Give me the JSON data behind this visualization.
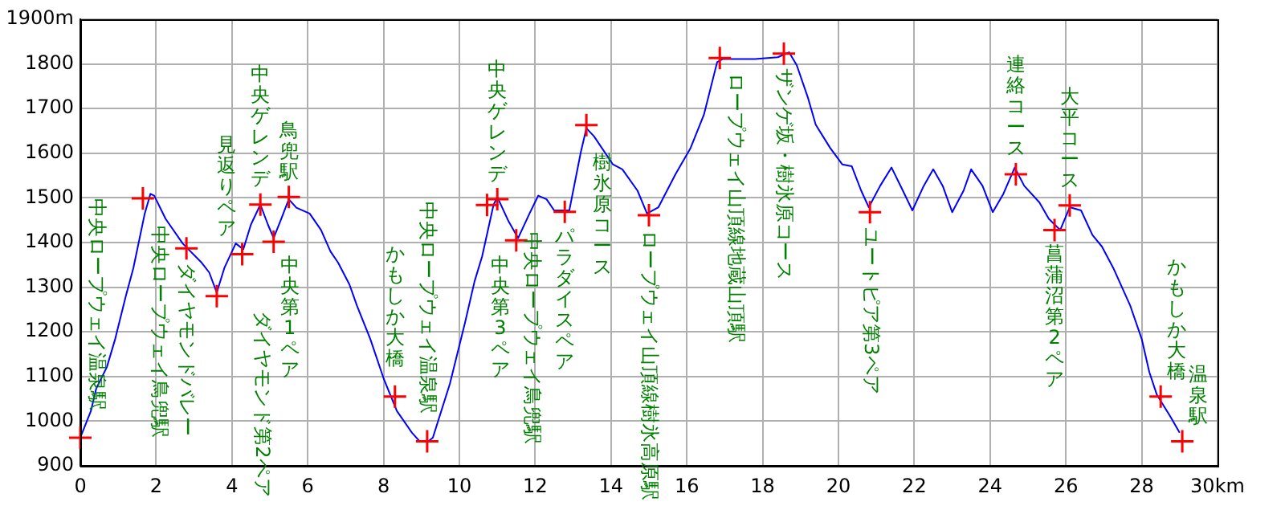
{
  "chart_data": {
    "type": "line",
    "xlim": [
      0,
      30
    ],
    "ylim": [
      900,
      1900
    ],
    "xticks": [
      0,
      2,
      4,
      6,
      8,
      10,
      12,
      14,
      16,
      18,
      20,
      22,
      24,
      26,
      28,
      {
        "value": 30,
        "label": "30km"
      }
    ],
    "yticks": [
      900,
      1000,
      1100,
      1200,
      1300,
      1400,
      1500,
      1600,
      1700,
      1800,
      {
        "value": 1900,
        "label": "1900m"
      }
    ],
    "grid": true,
    "legend": false,
    "series": [
      {
        "type": "line",
        "color": "#0000ff",
        "marker": "none",
        "x": [
          0,
          0.28,
          0.42,
          0.7,
          0.92,
          1.2,
          1.4,
          1.7,
          1.85,
          1.95,
          2.25,
          2.7,
          3.2,
          3.4,
          3.6,
          3.8,
          4.1,
          4.3,
          4.5,
          4.75,
          4.95,
          5.1,
          5.3,
          5.5,
          5.7,
          6.05,
          6.35,
          6.6,
          6.8,
          7.1,
          7.3,
          7.65,
          8.0,
          8.35,
          8.75,
          8.95,
          9.18,
          9.3,
          9.75,
          10.15,
          10.4,
          10.6,
          10.9,
          11.0,
          11.3,
          11.55,
          11.85,
          12.08,
          12.3,
          12.5,
          12.9,
          13.2,
          13.35,
          13.55,
          14.05,
          14.3,
          14.7,
          14.95,
          15.25,
          15.7,
          16.1,
          16.45,
          16.8,
          16.95,
          17.8,
          18.4,
          18.7,
          18.9,
          19.2,
          19.4,
          19.78,
          20.1,
          20.35,
          20.6,
          20.8,
          21.1,
          21.4,
          21.7,
          21.95,
          22.25,
          22.5,
          22.75,
          23.0,
          23.3,
          23.5,
          23.8,
          24.07,
          24.35,
          24.65,
          24.9,
          25.3,
          25.55,
          25.85,
          26.1,
          26.4,
          26.7,
          26.95,
          27.25,
          27.7,
          28.0,
          28.2,
          28.4,
          28.75,
          29.0
        ],
        "values": [
          963,
          1023,
          1073,
          1121,
          1184,
          1280,
          1343,
          1465,
          1509,
          1505,
          1453,
          1398,
          1355,
          1333,
          1288,
          1343,
          1398,
          1385,
          1440,
          1485,
          1440,
          1410,
          1453,
          1497,
          1478,
          1465,
          1428,
          1380,
          1355,
          1306,
          1258,
          1184,
          1096,
          1023,
          974,
          955,
          955,
          963,
          1084,
          1221,
          1313,
          1369,
          1484,
          1502,
          1447,
          1410,
          1465,
          1505,
          1497,
          1472,
          1472,
          1601,
          1656,
          1638,
          1575,
          1564,
          1516,
          1465,
          1479,
          1553,
          1612,
          1686,
          1804,
          1811,
          1811,
          1815,
          1826,
          1797,
          1723,
          1664,
          1612,
          1575,
          1571,
          1516,
          1479,
          1527,
          1568,
          1516,
          1472,
          1527,
          1564,
          1527,
          1468,
          1516,
          1564,
          1527,
          1468,
          1509,
          1568,
          1527,
          1490,
          1453,
          1428,
          1479,
          1472,
          1417,
          1391,
          1343,
          1258,
          1184,
          1110,
          1059,
          1011,
          974
        ]
      },
      {
        "type": "scatter",
        "color": "#ff0000",
        "marker": "cross",
        "x": [
          0,
          1.65,
          2.8,
          3.6,
          4.27,
          4.75,
          5.1,
          5.5,
          8.3,
          9.15,
          10.73,
          11.0,
          11.5,
          12.78,
          13.35,
          15.0,
          16.87,
          18.56,
          20.83,
          24.68,
          25.7,
          26.1,
          28.5,
          29.07
        ],
        "values": [
          963,
          1499,
          1387,
          1280,
          1374,
          1485,
          1402,
          1502,
          1055,
          955,
          1484,
          1497,
          1405,
          1469,
          1663,
          1461,
          1813,
          1823,
          1468,
          1553,
          1428,
          1483,
          1055,
          955
        ]
      }
    ],
    "annotations": [
      {
        "text": "中央ロープウェイ温泉駅",
        "x": 0,
        "y": 963
      },
      {
        "text": "中央ロープウェイ鳥兜駅",
        "x": 1.65,
        "y": 1499
      },
      {
        "text": "ダイヤモンドバレー",
        "x": 2.8,
        "y": 1387
      },
      {
        "text": "ダイヤモンド第2ペア",
        "x": 3.6,
        "y": 1280
      },
      {
        "text": "見返りペア",
        "x": 4.27,
        "y": 1374
      },
      {
        "text": "中央ゲレンデ",
        "x": 4.75,
        "y": 1485
      },
      {
        "text": "中央第1ペア",
        "x": 5.1,
        "y": 1402
      },
      {
        "text": "鳥兜駅",
        "x": 5.5,
        "y": 1502
      },
      {
        "text": "かもしか大橋",
        "x": 8.3,
        "y": 1055
      },
      {
        "text": "中央ロープウェイ温泉駅",
        "x": 9.15,
        "y": 955
      },
      {
        "text": "中央ロープウェイ鳥兜駅",
        "x": 10.73,
        "y": 1484
      },
      {
        "text": "中央ゲレンデ",
        "x": 11.0,
        "y": 1497
      },
      {
        "text": "中央第3ペア",
        "x": 11.5,
        "y": 1405
      },
      {
        "text": "パラダイスペア",
        "x": 12.78,
        "y": 1469
      },
      {
        "text": "樹氷原コース",
        "x": 13.35,
        "y": 1663
      },
      {
        "text": "ロープウェイ山頂線樹氷高原駅",
        "x": 15.0,
        "y": 1461
      },
      {
        "text": "ロープウェイ山頂線地蔵山頂駅",
        "x": 16.87,
        "y": 1813
      },
      {
        "text": "ザンゲ坂・樹氷原コース",
        "x": 18.56,
        "y": 1823
      },
      {
        "text": "ユートピア第3ペア",
        "x": 20.83,
        "y": 1468
      },
      {
        "text": "連絡コース",
        "x": 24.68,
        "y": 1553
      },
      {
        "text": "菖蒲沼第2ペア",
        "x": 25.7,
        "y": 1428
      },
      {
        "text": "大平コース",
        "x": 26.1,
        "y": 1483
      },
      {
        "text": "かもしか大橋",
        "x": 28.5,
        "y": 1055
      },
      {
        "text": "温泉駅",
        "x": 29.07,
        "y": 955
      }
    ]
  }
}
